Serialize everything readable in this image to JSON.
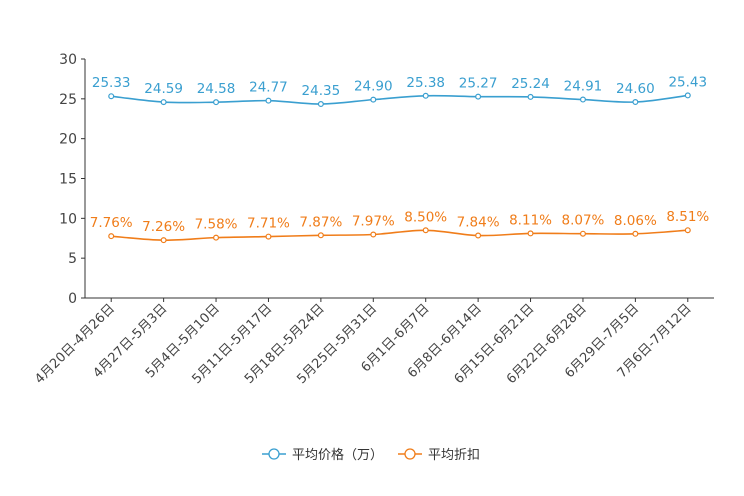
{
  "chart_data": {
    "type": "line",
    "title": "",
    "xlabel": "",
    "ylabel": "",
    "ylim": [
      0,
      30
    ],
    "yticks": [
      0,
      5,
      10,
      15,
      20,
      25,
      30
    ],
    "categories": [
      "4月20日-4月26日",
      "4月27日-5月3日",
      "5月4日-5月10日",
      "5月11日-5月17日",
      "5月18日-5月24日",
      "5月25日-5月31日",
      "6月1日-6月7日",
      "6月8日-6月14日",
      "6月15日-6月21日",
      "6月22日-6月28日",
      "6月29日-7月5日",
      "7月6日-7月12日"
    ],
    "series": [
      {
        "name": "平均价格（万）",
        "color": "#3a9fd0",
        "values": [
          25.33,
          24.59,
          24.58,
          24.77,
          24.35,
          24.9,
          25.38,
          25.27,
          25.24,
          24.91,
          24.6,
          25.43
        ],
        "labels": [
          "25.33",
          "24.59",
          "24.58",
          "24.77",
          "24.35",
          "24.90",
          "25.38",
          "25.27",
          "25.24",
          "24.91",
          "24.60",
          "25.43"
        ]
      },
      {
        "name": "平均折扣",
        "color": "#f07d1a",
        "values": [
          7.76,
          7.26,
          7.58,
          7.71,
          7.87,
          7.97,
          8.5,
          7.84,
          8.11,
          8.07,
          8.06,
          8.51
        ],
        "labels": [
          "7.76%",
          "7.26%",
          "7.58%",
          "7.71%",
          "7.87%",
          "7.97%",
          "8.50%",
          "7.84%",
          "8.11%",
          "8.07%",
          "8.06%",
          "8.51%"
        ]
      }
    ],
    "legend": "bottom-center",
    "grid": false
  }
}
